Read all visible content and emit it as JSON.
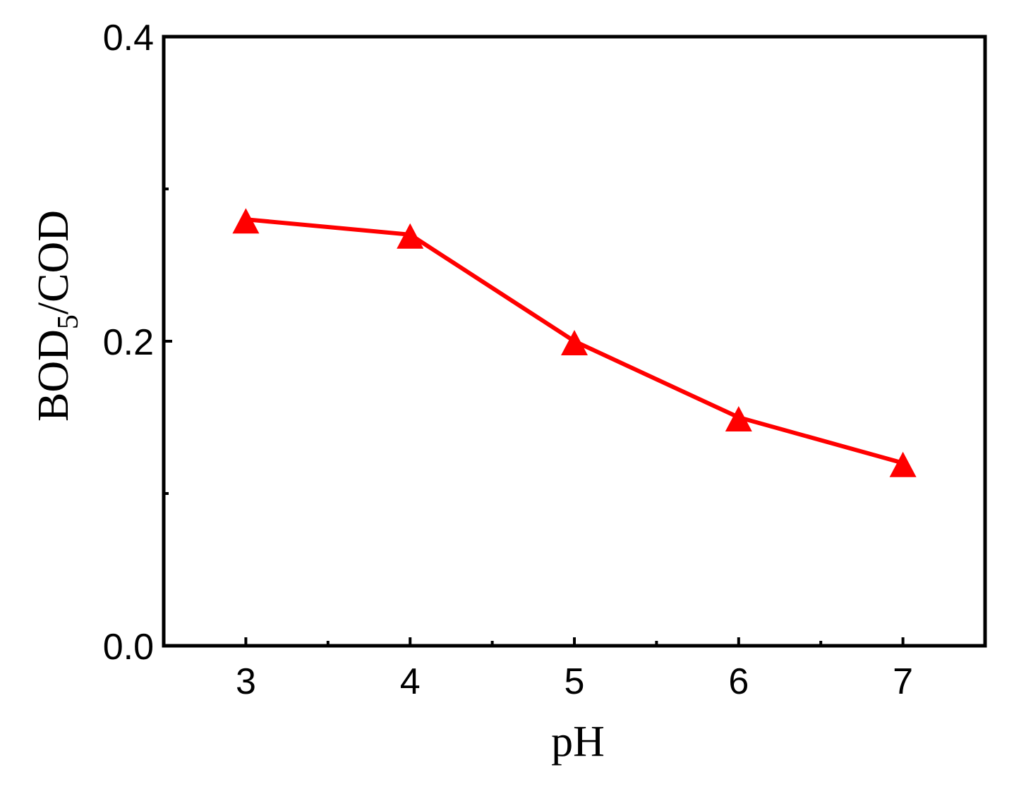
{
  "chart_data": {
    "type": "line",
    "xlabel": "pH",
    "ylabel": {
      "main": "BOD",
      "subscript": "5",
      "suffix": "/COD"
    },
    "xlim": [
      2.5,
      7.5
    ],
    "ylim": [
      0.0,
      0.4
    ],
    "x_ticks": [
      3,
      4,
      5,
      6,
      7
    ],
    "x_tick_labels": [
      "3",
      "4",
      "5",
      "6",
      "7"
    ],
    "y_ticks": [
      0.0,
      0.2,
      0.4
    ],
    "y_tick_labels": [
      "0.0",
      "0.2",
      "0.4"
    ],
    "y_minor_ticks": [
      0.1,
      0.3
    ],
    "x_minor_ticks": [
      3.5,
      4.5,
      5.5,
      6.5
    ],
    "grid": false,
    "series": [
      {
        "marker": "triangle",
        "color": "#ff0000",
        "x": [
          3,
          4,
          5,
          6,
          7
        ],
        "y": [
          0.28,
          0.27,
          0.2,
          0.15,
          0.12
        ]
      }
    ]
  }
}
